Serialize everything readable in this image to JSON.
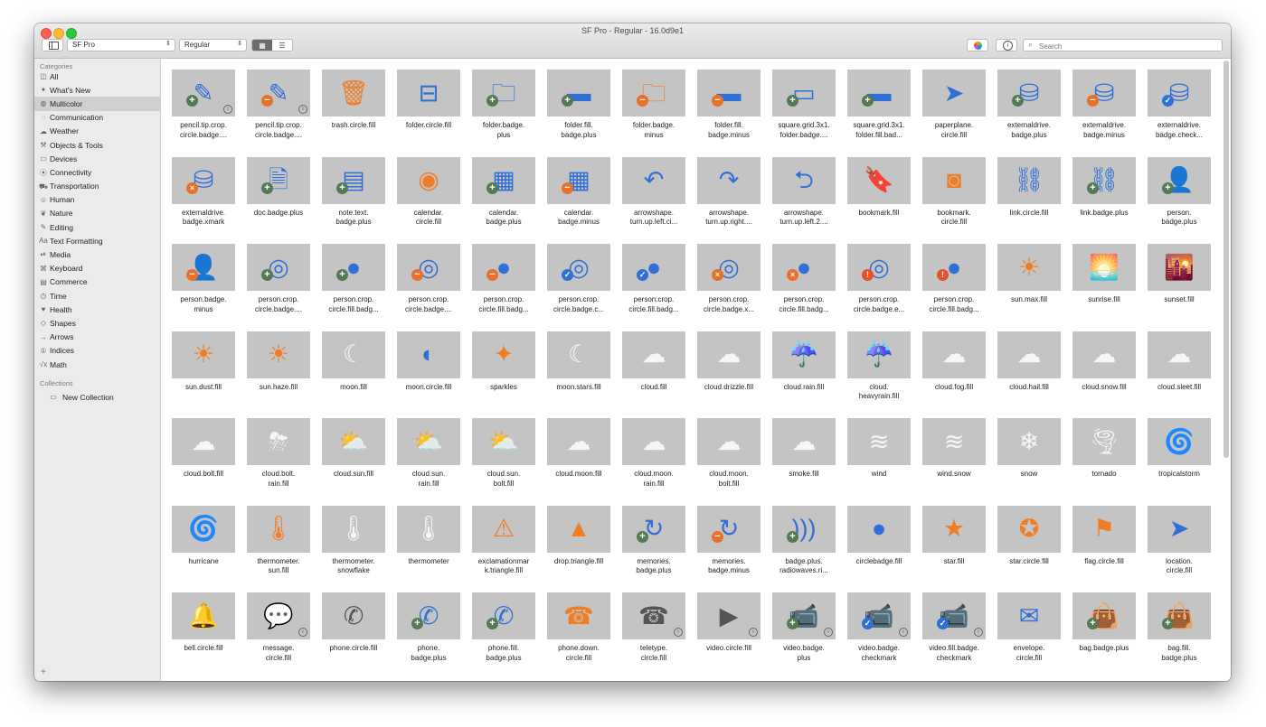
{
  "window": {
    "title": "SF Pro - Regular - 16.0d9e1"
  },
  "toolbar": {
    "font": "SF Pro",
    "weight": "Regular",
    "view_grid_glyph": "▦",
    "view_list_glyph": "☰",
    "search_placeholder": "Search",
    "info_glyph": "i"
  },
  "sidebar": {
    "categories_title": "Categories",
    "items": [
      {
        "icon": "◫",
        "label": "All"
      },
      {
        "icon": "✦",
        "label": "What's New"
      },
      {
        "icon": "◍",
        "label": "Multicolor",
        "selected": true
      },
      {
        "icon": "◌",
        "label": "Communication"
      },
      {
        "icon": "☁",
        "label": "Weather"
      },
      {
        "icon": "⚒",
        "label": "Objects & Tools"
      },
      {
        "icon": "▭",
        "label": "Devices"
      },
      {
        "icon": "⦿",
        "label": "Connectivity"
      },
      {
        "icon": "⛟",
        "label": "Transportation"
      },
      {
        "icon": "☺",
        "label": "Human"
      },
      {
        "icon": "❦",
        "label": "Nature"
      },
      {
        "icon": "✎",
        "label": "Editing"
      },
      {
        "icon": "Aa",
        "label": "Text Formatting"
      },
      {
        "icon": "⏯",
        "label": "Media"
      },
      {
        "icon": "⌘",
        "label": "Keyboard"
      },
      {
        "icon": "▤",
        "label": "Commerce"
      },
      {
        "icon": "◷",
        "label": "Time"
      },
      {
        "icon": "♥",
        "label": "Health"
      },
      {
        "icon": "◇",
        "label": "Shapes"
      },
      {
        "icon": "→",
        "label": "Arrows"
      },
      {
        "icon": "①",
        "label": "Indices"
      },
      {
        "icon": "√x",
        "label": "Math"
      }
    ],
    "collections_title": "Collections",
    "collections": [
      {
        "icon": "▭",
        "label": "New Collection"
      }
    ],
    "add_glyph": "+"
  },
  "symbols": [
    {
      "name": "pencil.tip.crop.\ncircle.badge....",
      "glyph": "✎",
      "color": "blue",
      "badge": "plus",
      "info": true
    },
    {
      "name": "pencil.tip.crop.\ncircle.badge....",
      "glyph": "✎",
      "color": "blue",
      "badge": "minus",
      "info": true
    },
    {
      "name": "trash.circle.fill",
      "glyph": "🗑",
      "color": "orange"
    },
    {
      "name": "folder.circle.fill",
      "glyph": "⊟",
      "color": "blue"
    },
    {
      "name": "folder.badge.\nplus",
      "glyph": "🗀",
      "color": "blue",
      "badge": "plus"
    },
    {
      "name": "folder.fill.\nbadge.plus",
      "glyph": "▬",
      "color": "blue",
      "badge": "plus"
    },
    {
      "name": "folder.badge.\nminus",
      "glyph": "🗀",
      "color": "orange",
      "badge": "minus"
    },
    {
      "name": "folder.fill.\nbadge.minus",
      "glyph": "▬",
      "color": "blue",
      "badge": "minus"
    },
    {
      "name": "square.grid.3x1.\nfolder.badge....",
      "glyph": "▭",
      "color": "blue",
      "badge": "plus"
    },
    {
      "name": "square.grid.3x1.\nfolder.fill.bad...",
      "glyph": "▬",
      "color": "blue",
      "badge": "plus"
    },
    {
      "name": "paperplane.\ncircle.fill",
      "glyph": "➤",
      "color": "blue"
    },
    {
      "name": "externaldrive.\nbadge.plus",
      "glyph": "⛁",
      "color": "blue",
      "badge": "plus"
    },
    {
      "name": "externaldrive.\nbadge.minus",
      "glyph": "⛁",
      "color": "blue",
      "badge": "minus"
    },
    {
      "name": "externaldrive.\nbadge.check...",
      "glyph": "⛁",
      "color": "blue",
      "badge": "check"
    },
    {
      "name": "externaldrive.\nbadge.xmark",
      "glyph": "⛁",
      "color": "blue",
      "badge": "xm"
    },
    {
      "name": "doc.badge.plus",
      "glyph": "🗎",
      "color": "blue",
      "badge": "plus"
    },
    {
      "name": "note.text.\nbadge.plus",
      "glyph": "▤",
      "color": "blue",
      "badge": "plus"
    },
    {
      "name": "calendar.\ncircle.fill",
      "glyph": "◉",
      "color": "orange"
    },
    {
      "name": "calendar.\nbadge.plus",
      "glyph": "▦",
      "color": "blue",
      "badge": "plus"
    },
    {
      "name": "calendar.\nbadge.minus",
      "glyph": "▦",
      "color": "blue",
      "badge": "minus"
    },
    {
      "name": "arrowshape.\nturn.up.left.ci...",
      "glyph": "↶",
      "color": "blue"
    },
    {
      "name": "arrowshape.\nturn.up.right....",
      "glyph": "↷",
      "color": "blue"
    },
    {
      "name": "arrowshape.\nturn.up.left.2....",
      "glyph": "⮌",
      "color": "blue"
    },
    {
      "name": "bookmark.fill",
      "glyph": "🔖",
      "color": "orange"
    },
    {
      "name": "bookmark.\ncircle.fill",
      "glyph": "◙",
      "color": "orange"
    },
    {
      "name": "link.circle.fill",
      "glyph": "⛓",
      "color": "blue"
    },
    {
      "name": "link.badge.plus",
      "glyph": "⛓",
      "color": "blue",
      "badge": "plus"
    },
    {
      "name": "person.\nbadge.plus",
      "glyph": "👤",
      "color": "blue",
      "badge": "plus"
    },
    {
      "name": "person.badge.\nminus",
      "glyph": "👤",
      "color": "blue",
      "badge": "minus"
    },
    {
      "name": "person.crop.\ncircle.badge....",
      "glyph": "◎",
      "color": "blue",
      "badge": "plus"
    },
    {
      "name": "person.crop.\ncircle.fill.badg...",
      "glyph": "●",
      "color": "blue",
      "badge": "plus"
    },
    {
      "name": "person.crop.\ncircle.badge....",
      "glyph": "◎",
      "color": "blue",
      "badge": "minus"
    },
    {
      "name": "person.crop.\ncircle.fill.badg...",
      "glyph": "●",
      "color": "blue",
      "badge": "minus"
    },
    {
      "name": "person.crop.\ncircle.badge.c...",
      "glyph": "◎",
      "color": "blue",
      "badge": "check"
    },
    {
      "name": "person.crop.\ncircle.fill.badg...",
      "glyph": "●",
      "color": "blue",
      "badge": "check"
    },
    {
      "name": "person.crop.\ncircle.badge.x...",
      "glyph": "◎",
      "color": "blue",
      "badge": "xm"
    },
    {
      "name": "person.crop.\ncircle.fill.badg...",
      "glyph": "●",
      "color": "blue",
      "badge": "xm"
    },
    {
      "name": "person.crop.\ncircle.badge.e...",
      "glyph": "◎",
      "color": "blue",
      "badge": "excl"
    },
    {
      "name": "person.crop.\ncircle.fill.badg...",
      "glyph": "●",
      "color": "blue",
      "badge": "excl"
    },
    {
      "name": "sun.max.fill",
      "glyph": "☀",
      "color": "orange"
    },
    {
      "name": "sunrise.fill",
      "glyph": "🌅",
      "color": "orange"
    },
    {
      "name": "sunset.fill",
      "glyph": "🌇",
      "color": "orange"
    },
    {
      "name": "sun.dust.fill",
      "glyph": "☀",
      "color": "orange"
    },
    {
      "name": "sun.haze.fill",
      "glyph": "☀",
      "color": "orange"
    },
    {
      "name": "moon.fill",
      "glyph": "☾",
      "color": "wfill"
    },
    {
      "name": "moon.circle.fill",
      "glyph": "◐",
      "color": "blue"
    },
    {
      "name": "sparkles",
      "glyph": "✦",
      "color": "orange"
    },
    {
      "name": "moon.stars.fill",
      "glyph": "☾",
      "color": "wfill"
    },
    {
      "name": "cloud.fill",
      "glyph": "☁",
      "color": "wfill"
    },
    {
      "name": "cloud.drizzle.fill",
      "glyph": "☁",
      "color": "wfill"
    },
    {
      "name": "cloud.rain.fill",
      "glyph": "☔",
      "color": "wfill"
    },
    {
      "name": "cloud.\nheavyrain.fill",
      "glyph": "☔",
      "color": "wfill"
    },
    {
      "name": "cloud.fog.fill",
      "glyph": "☁",
      "color": "wfill"
    },
    {
      "name": "cloud.hail.fill",
      "glyph": "☁",
      "color": "wfill"
    },
    {
      "name": "cloud.snow.fill",
      "glyph": "☁",
      "color": "wfill"
    },
    {
      "name": "cloud.sleet.fill",
      "glyph": "☁",
      "color": "wfill"
    },
    {
      "name": "cloud.bolt.fill",
      "glyph": "☁",
      "color": "wfill"
    },
    {
      "name": "cloud.bolt.\nrain.fill",
      "glyph": "⛈",
      "color": "wfill"
    },
    {
      "name": "cloud.sun.fill",
      "glyph": "⛅",
      "color": "wfill"
    },
    {
      "name": "cloud.sun.\nrain.fill",
      "glyph": "⛅",
      "color": "wfill"
    },
    {
      "name": "cloud.sun.\nbolt.fill",
      "glyph": "⛅",
      "color": "wfill"
    },
    {
      "name": "cloud.moon.fill",
      "glyph": "☁",
      "color": "wfill"
    },
    {
      "name": "cloud.moon.\nrain.fill",
      "glyph": "☁",
      "color": "wfill"
    },
    {
      "name": "cloud.moon.\nbolt.fill",
      "glyph": "☁",
      "color": "wfill"
    },
    {
      "name": "smoke.fill",
      "glyph": "☁",
      "color": "wfill"
    },
    {
      "name": "wind",
      "glyph": "≋",
      "color": "wfill"
    },
    {
      "name": "wind.snow",
      "glyph": "≋",
      "color": "wfill"
    },
    {
      "name": "snow",
      "glyph": "❄",
      "color": "wfill"
    },
    {
      "name": "tornado",
      "glyph": "🌪",
      "color": "wfill"
    },
    {
      "name": "tropicalstorm",
      "glyph": "🌀",
      "color": "wfill"
    },
    {
      "name": "hurricane",
      "glyph": "🌀",
      "color": "wfill"
    },
    {
      "name": "thermometer.\nsun.fill",
      "glyph": "🌡",
      "color": "orange"
    },
    {
      "name": "thermometer.\nsnowflake",
      "glyph": "🌡",
      "color": "wfill"
    },
    {
      "name": "thermometer",
      "glyph": "🌡",
      "color": "wfill"
    },
    {
      "name": "exclamationmar\nk.triangle.fill",
      "glyph": "⚠",
      "color": "orange"
    },
    {
      "name": "drop.triangle.fill",
      "glyph": "▲",
      "color": "orange"
    },
    {
      "name": "memories.\nbadge.plus",
      "glyph": "↻",
      "color": "blue",
      "badge": "plus"
    },
    {
      "name": "memories.\nbadge.minus",
      "glyph": "↻",
      "color": "blue",
      "badge": "minus"
    },
    {
      "name": "badge.plus.\nradiowaves.ri...",
      "glyph": ")))",
      "color": "blue",
      "badge": "plus"
    },
    {
      "name": "circlebadge.fill",
      "glyph": "●",
      "color": "blue"
    },
    {
      "name": "star.fill",
      "glyph": "★",
      "color": "orange"
    },
    {
      "name": "star.circle.fill",
      "glyph": "✪",
      "color": "orange"
    },
    {
      "name": "flag.circle.fill",
      "glyph": "⚑",
      "color": "orange"
    },
    {
      "name": "location.\ncircle.fill",
      "glyph": "➤",
      "color": "blue"
    },
    {
      "name": "bell.circle.fill",
      "glyph": "🔔",
      "color": "orange"
    },
    {
      "name": "message.\ncircle.fill",
      "glyph": "💬",
      "color": "gray",
      "info": true
    },
    {
      "name": "phone.circle.fill",
      "glyph": "✆",
      "color": "gray"
    },
    {
      "name": "phone.\nbadge.plus",
      "glyph": "✆",
      "color": "blue",
      "badge": "plus"
    },
    {
      "name": "phone.fill.\nbadge.plus",
      "glyph": "✆",
      "color": "blue",
      "badge": "plus"
    },
    {
      "name": "phone.down.\ncircle.fill",
      "glyph": "☎",
      "color": "orange"
    },
    {
      "name": "teletype.\ncircle.fill",
      "glyph": "☎",
      "color": "gray",
      "info": true
    },
    {
      "name": "video.circle.fill",
      "glyph": "▶",
      "color": "gray",
      "info": true
    },
    {
      "name": "video.badge.\nplus",
      "glyph": "📹",
      "color": "blue",
      "badge": "plus",
      "info": true
    },
    {
      "name": "video.badge.\ncheckmark",
      "glyph": "📹",
      "color": "blue",
      "badge": "check",
      "info": true
    },
    {
      "name": "video.fill.badge.\ncheckmark",
      "glyph": "📹",
      "color": "blue",
      "badge": "check",
      "info": true
    },
    {
      "name": "envelope.\ncircle.fill",
      "glyph": "✉",
      "color": "blue"
    },
    {
      "name": "bag.badge.plus",
      "glyph": "👜",
      "color": "blue",
      "badge": "plus"
    },
    {
      "name": "bag.fill.\nbadge.plus",
      "glyph": "👜",
      "color": "blue",
      "badge": "plus"
    }
  ],
  "colors": {
    "blue": "#2f6fd6",
    "orange": "#f07c24",
    "tile_bg": "#c4c4c4",
    "badge_plus": "#547a55"
  }
}
